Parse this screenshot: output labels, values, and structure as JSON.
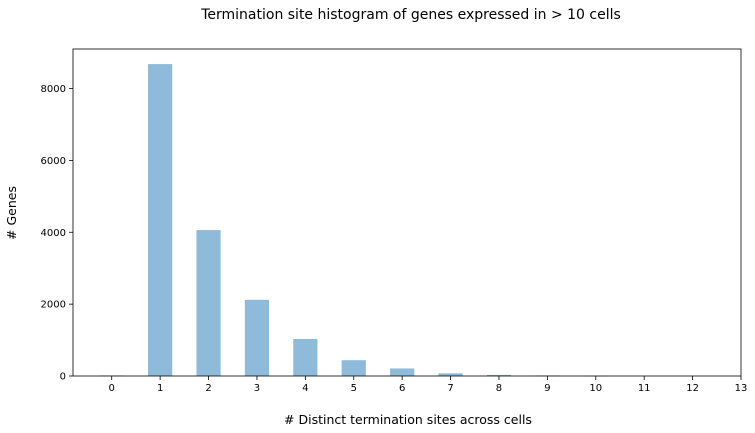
{
  "chart_data": {
    "type": "bar",
    "title": "Termination site histogram of genes expressed in > 10 cells",
    "xlabel": "# Distinct termination sites across cells",
    "ylabel": "# Genes",
    "categories": [
      "0",
      "1",
      "2",
      "3",
      "4",
      "5",
      "6",
      "7",
      "8",
      "9",
      "10",
      "11",
      "12",
      "13"
    ],
    "x_ticks": [
      0,
      1,
      2,
      3,
      4,
      5,
      6,
      7,
      8,
      9,
      10,
      11,
      12,
      13
    ],
    "y_ticks": [
      0,
      2000,
      4000,
      6000,
      8000
    ],
    "values": [
      15,
      8680,
      4060,
      2120,
      1030,
      440,
      210,
      75,
      30,
      15,
      5,
      0,
      0,
      0
    ],
    "xlim": [
      -0.8,
      13
    ],
    "ylim": [
      0,
      9100
    ],
    "bar_color": "#8fbbdb",
    "grid": false,
    "legend": false
  }
}
